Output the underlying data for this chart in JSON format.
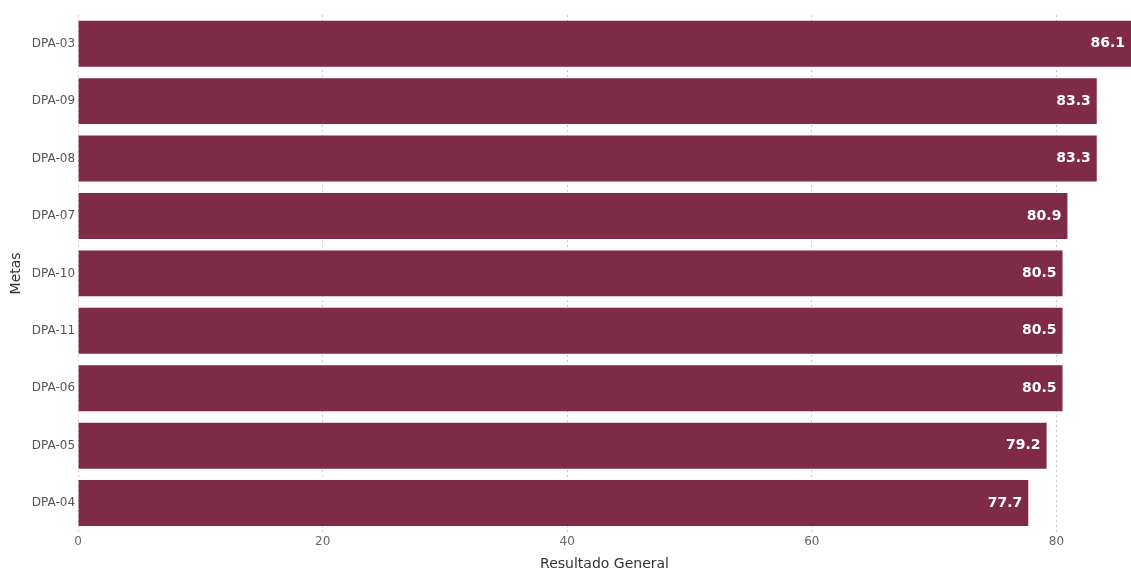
{
  "chart_data": {
    "type": "bar",
    "orientation": "horizontal",
    "xlabel": "Resultado General",
    "ylabel": "Metas",
    "categories": [
      "DPA-03",
      "DPA-09",
      "DPA-08",
      "DPA-07",
      "DPA-10",
      "DPA-11",
      "DPA-06",
      "DPA-05",
      "DPA-04"
    ],
    "values": [
      86.1,
      83.3,
      83.3,
      80.9,
      80.5,
      80.5,
      80.5,
      79.2,
      77.7
    ],
    "color": "#7f2a47",
    "xlim": [
      0,
      86.1
    ],
    "xticks": [
      0,
      20,
      40,
      60,
      80
    ],
    "grid": "x",
    "data_labels": true
  }
}
